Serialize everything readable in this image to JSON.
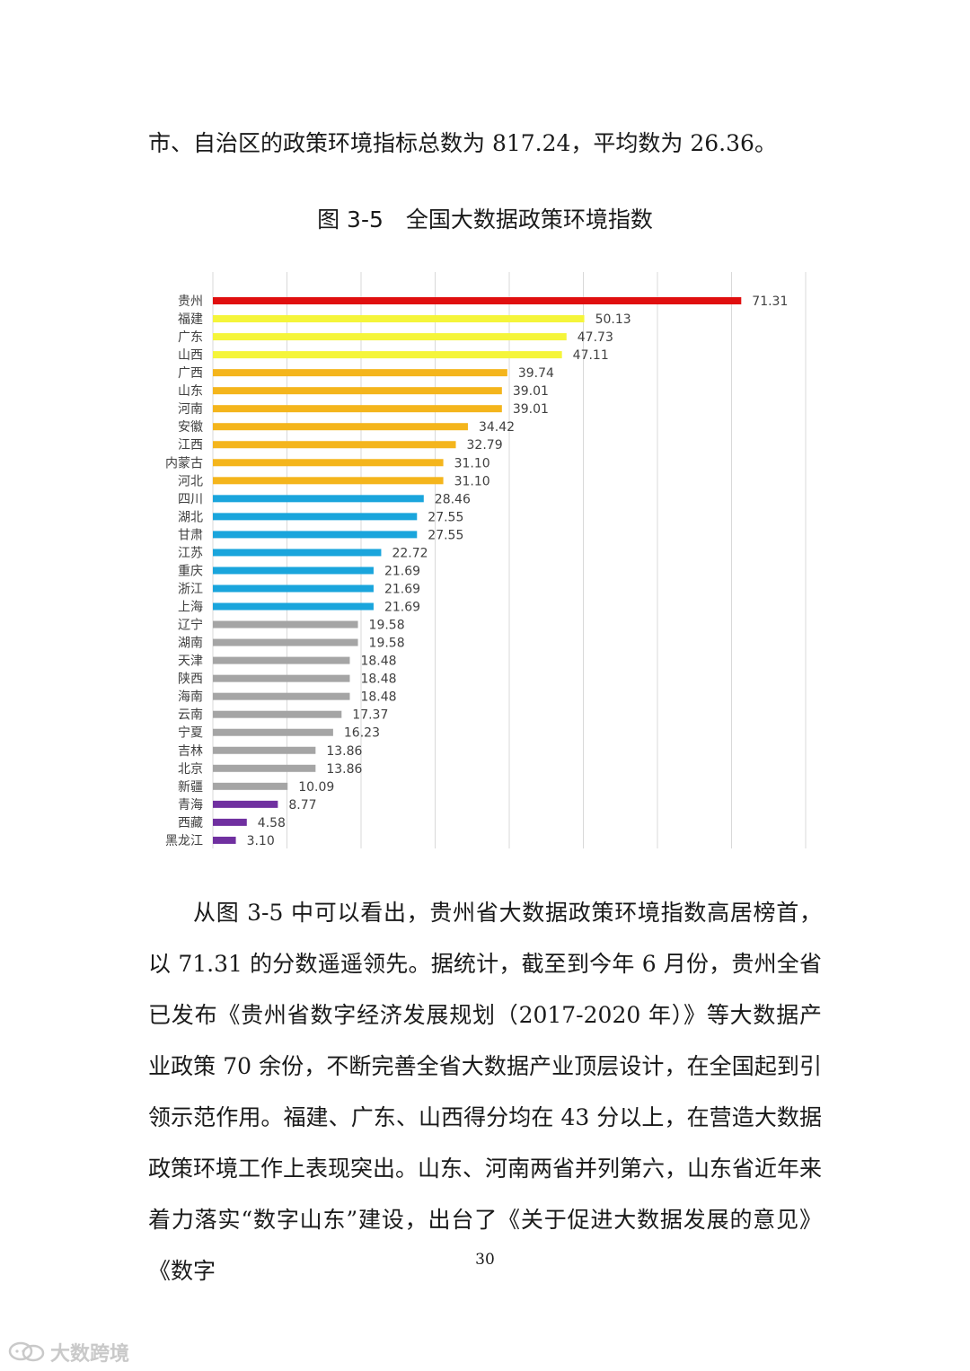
{
  "intro_text": "市、自治区的政策环境指标总数为 817.24，平均数为 26.36。",
  "figure_title": "图 3-5　全国大数据政策环境指数",
  "chart_data": {
    "type": "bar",
    "orientation": "horizontal",
    "title": "",
    "xlabel": "",
    "ylabel": "",
    "xlim": [
      0,
      80
    ],
    "grid": true,
    "legend": "none",
    "categories": [
      "贵州",
      "福建",
      "广东",
      "山西",
      "广西",
      "山东",
      "河南",
      "安徽",
      "江西",
      "内蒙古",
      "河北",
      "四川",
      "湖北",
      "甘肃",
      "江苏",
      "重庆",
      "浙江",
      "上海",
      "辽宁",
      "湖南",
      "天津",
      "陕西",
      "海南",
      "云南",
      "宁夏",
      "吉林",
      "北京",
      "新疆",
      "青海",
      "西藏",
      "黑龙江"
    ],
    "values": [
      71.31,
      50.13,
      47.73,
      47.11,
      39.74,
      39.01,
      39.01,
      34.42,
      32.79,
      31.1,
      31.1,
      28.46,
      27.55,
      27.55,
      22.72,
      21.69,
      21.69,
      21.69,
      19.58,
      19.58,
      18.48,
      18.48,
      18.48,
      17.37,
      16.23,
      13.86,
      13.86,
      10.09,
      8.77,
      4.58,
      3.1
    ],
    "value_labels": [
      "71.31",
      "50.13",
      "47.73",
      "47.11",
      "39.74",
      "39.01",
      "39.01",
      "34.42",
      "32.79",
      "31.10",
      "31.10",
      "28.46",
      "27.55",
      "27.55",
      "22.72",
      "21.69",
      "21.69",
      "21.69",
      "19.58",
      "19.58",
      "18.48",
      "18.48",
      "18.48",
      "17.37",
      "16.23",
      "13.86",
      "13.86",
      "10.09",
      "8.77",
      "4.58",
      "3.10"
    ],
    "bar_colors": [
      "#e00f0f",
      "#f5f53a",
      "#f5f53a",
      "#f5f53a",
      "#f4b51c",
      "#f4b51c",
      "#f4b51c",
      "#f4b51c",
      "#f4b51c",
      "#f4b51c",
      "#f4b51c",
      "#1aa5dc",
      "#1aa5dc",
      "#1aa5dc",
      "#1aa5dc",
      "#1aa5dc",
      "#1aa5dc",
      "#1aa5dc",
      "#a5a5a5",
      "#a5a5a5",
      "#a5a5a5",
      "#a5a5a5",
      "#a5a5a5",
      "#a5a5a5",
      "#a5a5a5",
      "#a5a5a5",
      "#a5a5a5",
      "#a5a5a5",
      "#7030a0",
      "#7030a0",
      "#7030a0"
    ]
  },
  "body_text": "从图 3-5 中可以看出，贵州省大数据政策环境指数高居榜首，以 71.31 的分数遥遥领先。据统计，截至到今年 6 月份，贵州全省已发布《贵州省数字经济发展规划（2017-2020 年）》等大数据产业政策 70 余份，不断完善全省大数据产业顶层设计，在全国起到引领示范作用。福建、广东、山西得分均在 43 分以上，在营造大数据政策环境工作上表现突出。山东、河南两省并列第六，山东省近年来着力落实“数字山东”建设，出台了《关于促进大数据发展的意见》《数字",
  "page_number": "30",
  "watermark_text": "大数跨境",
  "colors": {
    "text": "#1a1a1a",
    "grid": "#d9d9d9",
    "watermark": "#c9c9c9"
  }
}
